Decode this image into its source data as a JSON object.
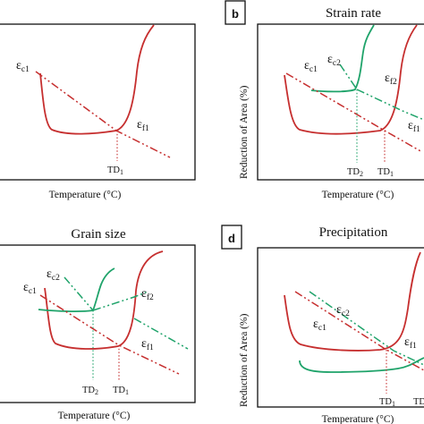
{
  "colors": {
    "red": "#c62f2f",
    "green": "#1fa36a",
    "frame": "#111111"
  },
  "panel_a": {
    "xlabel": "Temperature (°C)",
    "eps_c_main": "ε",
    "eps_c_sub": "c1",
    "eps_f_main": "ε",
    "eps_f_sub": "f1",
    "td_main": "TD",
    "td_sub": "1"
  },
  "panel_b": {
    "badge": "b",
    "title": "Strain rate",
    "ylabel": "Reduction of Area (%)",
    "xlabel": "Temperature (°C)",
    "eps_c1_main": "ε",
    "eps_c1_sub": "c1",
    "eps_c2_main": "ε",
    "eps_c2_sub": "c2",
    "eps_f2_main": "ε",
    "eps_f2_sub": "f2",
    "eps_f1_main": "ε",
    "eps_f1_sub": "f1",
    "td2_main": "TD",
    "td2_sub": "2",
    "td1_main": "TD",
    "td1_sub": "1"
  },
  "panel_c": {
    "title": "Grain size",
    "xlabel": "Temperature (°C)",
    "eps_c1_main": "ε",
    "eps_c1_sub": "c1",
    "eps_c2_main": "ε",
    "eps_c2_sub": "c2",
    "eps_f2_main": "ε",
    "eps_f2_sub": "f2",
    "eps_f1_main": "ε",
    "eps_f1_sub": "f1",
    "td2_main": "TD",
    "td2_sub": "2",
    "td1_main": "TD",
    "td1_sub": "1"
  },
  "panel_d": {
    "badge": "d",
    "title": "Precipitation",
    "ylabel": "Reduction of Area (%)",
    "xlabel": "Temperature (°C)",
    "eps_c2_main": "ε",
    "eps_c2_sub": "c2",
    "eps_c1_main": "ε",
    "eps_c1_sub": "c1",
    "eps_f1_main": "ε",
    "eps_f1_sub": "f1",
    "td1_main": "TD",
    "td1_sub": "1",
    "td_extra": "TD"
  }
}
